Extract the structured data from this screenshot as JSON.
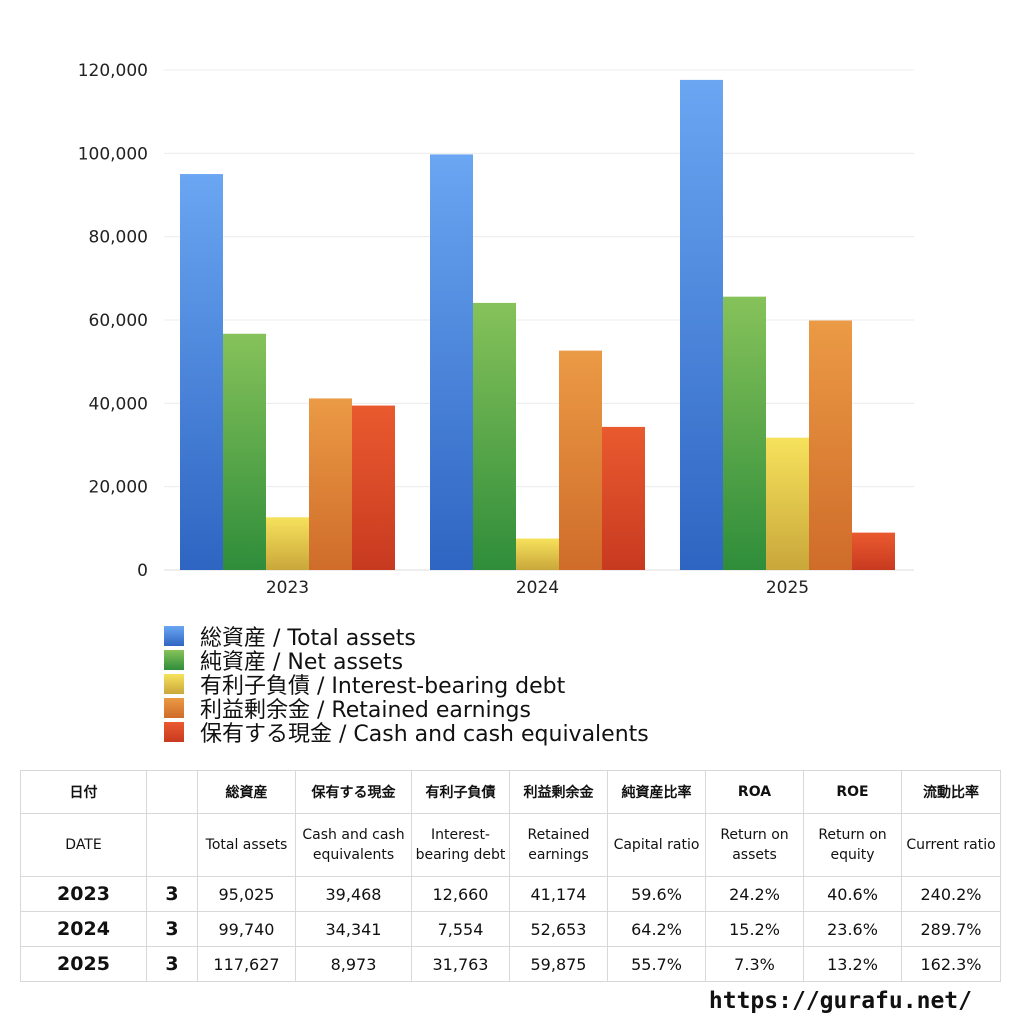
{
  "chart_data": {
    "type": "bar",
    "categories": [
      "2023",
      "2024",
      "2025"
    ],
    "ylim": [
      0,
      120000
    ],
    "yticks": [
      "0",
      "20,000",
      "40,000",
      "60,000",
      "80,000",
      "100,000",
      "120,000"
    ],
    "grid": true,
    "legend_position": "bottom",
    "series": [
      {
        "name": "総資産 / Total assets",
        "values": [
          95025,
          99740,
          117627
        ],
        "color_top": "#6aa6f2",
        "color_bottom": "#2e65c2"
      },
      {
        "name": "純資産 / Net assets",
        "values": [
          56700,
          64100,
          65600
        ],
        "color_top": "#86c25a",
        "color_bottom": "#2f8d3a"
      },
      {
        "name": "有利子負債 / Interest-bearing debt",
        "values": [
          12660,
          7554,
          31763
        ],
        "color_top": "#f6e25c",
        "color_bottom": "#c9a73a"
      },
      {
        "name": "利益剰余金 / Retained earnings",
        "values": [
          41174,
          52653,
          59875
        ],
        "color_top": "#eb9a45",
        "color_bottom": "#cf6c2a"
      },
      {
        "name": "保有する現金 /  Cash and cash equivalents",
        "values": [
          39468,
          34341,
          8973
        ],
        "color_top": "#ea5a2f",
        "color_bottom": "#c83a20"
      }
    ]
  },
  "table": {
    "headers_jp": [
      "日付",
      "",
      "総資産",
      "保有する現金",
      "有利子負債",
      "利益剰余金",
      "純資産比率",
      "ROA",
      "ROE",
      "流動比率"
    ],
    "headers_en": [
      "DATE",
      "",
      "Total assets",
      "Cash and cash equivalents",
      "Interest-bearing debt",
      "Retained earnings",
      "Capital ratio",
      "Return on assets",
      "Return on equity",
      "Current ratio"
    ],
    "rows": [
      {
        "year": "2023",
        "month": "3",
        "cells": [
          "95,025",
          "39,468",
          "12,660",
          "41,174",
          "59.6%",
          "24.2%",
          "40.6%",
          "240.2%"
        ]
      },
      {
        "year": "2024",
        "month": "3",
        "cells": [
          "99,740",
          "34,341",
          "7,554",
          "52,653",
          "64.2%",
          "15.2%",
          "23.6%",
          "289.7%"
        ]
      },
      {
        "year": "2025",
        "month": "3",
        "cells": [
          "117,627",
          "8,973",
          "31,763",
          "59,875",
          "55.7%",
          "7.3%",
          "13.2%",
          "162.3%"
        ]
      }
    ]
  },
  "footer": {
    "site": "https://gurafu.net/"
  }
}
